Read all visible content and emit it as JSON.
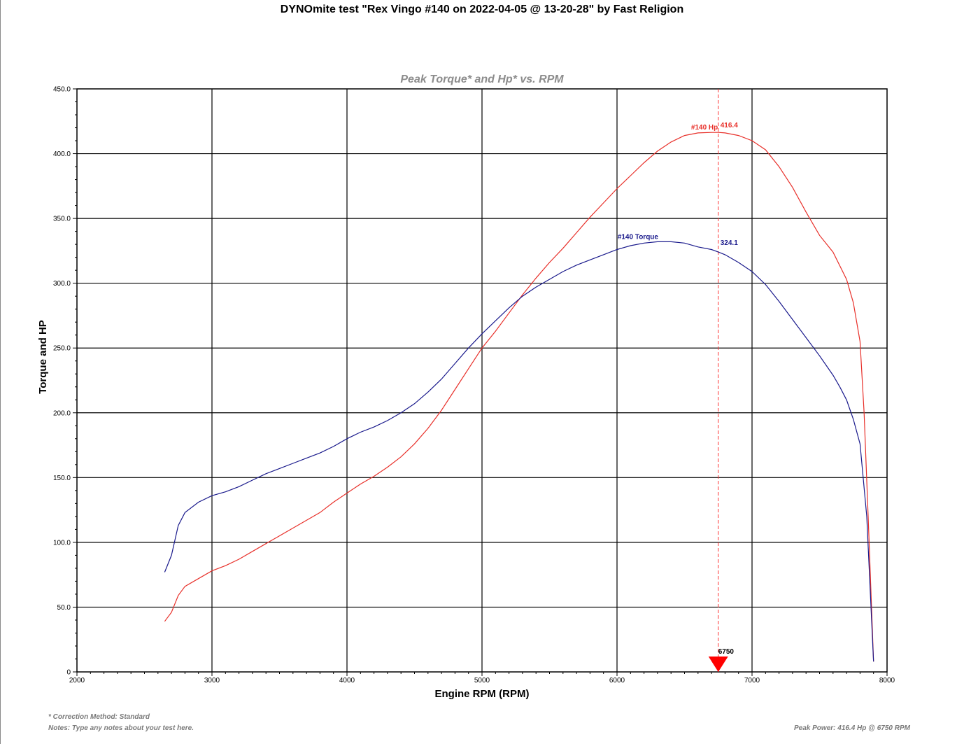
{
  "page": {
    "title": "DYNOmite test \"Rex Vingo #140 on 2022-04-05 @ 13-20-28\" by Fast Religion",
    "correction_note": "* Correction Method: Standard",
    "notes": "Notes: Type any notes about your test here.",
    "peak_power_note": "Peak Power: 416.4 Hp @ 6750 RPM"
  },
  "chart_data": {
    "type": "line",
    "subtitle": "Peak Torque* and Hp* vs. RPM",
    "xlabel": "Engine RPM (RPM)",
    "ylabel": "Torque and HP",
    "xlim": [
      2000,
      8000
    ],
    "ylim": [
      0,
      450
    ],
    "x_ticks": [
      2000,
      3000,
      4000,
      5000,
      6000,
      7000,
      8000
    ],
    "x_tick_labels": [
      "2000",
      "3000",
      "4000",
      "5000",
      "6000",
      "7000",
      "8000"
    ],
    "y_ticks": [
      0,
      50,
      100,
      150,
      200,
      250,
      300,
      350,
      400,
      450
    ],
    "y_tick_labels": [
      "0",
      "50.0",
      "100.0",
      "150.0",
      "200.0",
      "250.0",
      "300.0",
      "350.0",
      "400.0",
      "450.0"
    ],
    "grid": true,
    "colors": {
      "torque": "#1a1a8c",
      "hp": "#e8302a",
      "marker": "#ff0000",
      "grid": "#000000"
    },
    "series": [
      {
        "name": "#140 Torque",
        "peak_label": "324.1",
        "x": [
          2650,
          2700,
          2750,
          2800,
          2900,
          3000,
          3100,
          3200,
          3300,
          3400,
          3500,
          3600,
          3700,
          3800,
          3900,
          4000,
          4100,
          4200,
          4300,
          4400,
          4500,
          4600,
          4700,
          4800,
          4900,
          5000,
          5100,
          5200,
          5300,
          5400,
          5500,
          5600,
          5700,
          5800,
          5900,
          6000,
          6100,
          6200,
          6300,
          6400,
          6500,
          6600,
          6700,
          6750,
          6800,
          6900,
          7000,
          7100,
          7200,
          7300,
          7400,
          7500,
          7600,
          7650,
          7700,
          7750,
          7800,
          7850,
          7900
        ],
        "values": [
          77,
          90,
          113,
          123,
          131,
          136,
          139,
          143,
          148,
          153,
          157,
          161,
          165,
          169,
          174,
          180,
          185,
          189,
          194,
          200,
          207,
          216,
          226,
          238,
          250,
          261,
          271,
          281,
          290,
          297,
          303,
          309,
          314,
          318,
          322,
          326,
          329,
          331,
          332,
          332,
          331,
          328,
          326,
          324.1,
          322,
          316,
          309,
          299,
          286,
          272,
          258,
          244,
          229,
          220,
          210,
          195,
          176,
          120,
          8
        ]
      },
      {
        "name": "#140 Hp",
        "peak_label": "416.4",
        "x": [
          2650,
          2700,
          2750,
          2800,
          2900,
          3000,
          3100,
          3200,
          3300,
          3400,
          3500,
          3600,
          3700,
          3800,
          3900,
          4000,
          4100,
          4200,
          4300,
          4400,
          4500,
          4600,
          4700,
          4800,
          4900,
          5000,
          5100,
          5200,
          5300,
          5400,
          5500,
          5600,
          5700,
          5800,
          5900,
          6000,
          6100,
          6200,
          6300,
          6400,
          6500,
          6600,
          6700,
          6750,
          6800,
          6900,
          7000,
          7100,
          7200,
          7300,
          7400,
          7500,
          7600,
          7700,
          7750,
          7800,
          7830,
          7860,
          7900
        ],
        "values": [
          39,
          46,
          59,
          66,
          72,
          78,
          82,
          87,
          93,
          99,
          105,
          111,
          117,
          123,
          131,
          138,
          145,
          151,
          158,
          166,
          176,
          188,
          202,
          218,
          234,
          250,
          263,
          277,
          291,
          304,
          316,
          327,
          339,
          351,
          362,
          373,
          383,
          393,
          402,
          409,
          414,
          416,
          416.4,
          416.4,
          416,
          414,
          410,
          403,
          390,
          374,
          355,
          337,
          324,
          303,
          285,
          255,
          200,
          120,
          8
        ]
      }
    ],
    "peak_marker": {
      "rpm": 6750,
      "label": "6750"
    }
  }
}
